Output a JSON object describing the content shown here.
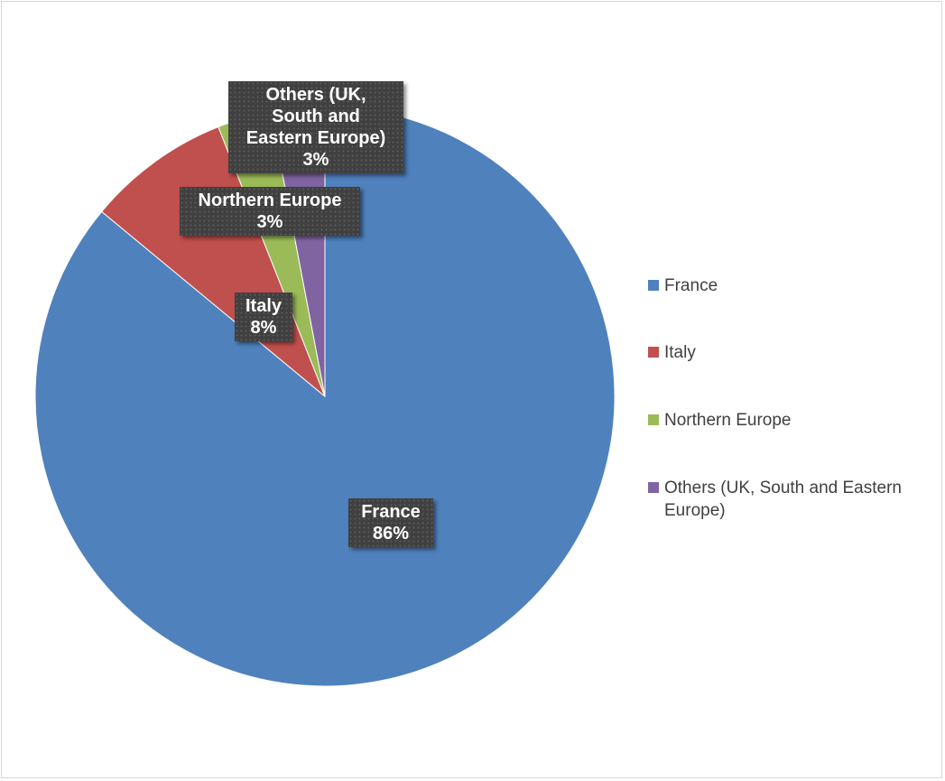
{
  "chart_data": {
    "type": "pie",
    "categories": [
      "France",
      "Italy",
      "Northern Europe",
      "Others (UK, South and Eastern Europe)"
    ],
    "values": [
      86,
      8,
      3,
      3
    ],
    "value_labels": [
      "86%",
      "8%",
      "3%",
      "3%"
    ],
    "colors": [
      "#4f81bd",
      "#c0504d",
      "#9bbb59",
      "#8064a2"
    ],
    "label_lines": [
      [
        "France",
        "86%"
      ],
      [
        "Italy",
        "8%"
      ],
      [
        "Northern Europe",
        "3%"
      ],
      [
        "Others (UK,",
        "South and",
        "Eastern Europe)",
        "3%"
      ]
    ],
    "legend": {
      "placement": "right",
      "entries": [
        "France",
        "Italy",
        "Northern Europe",
        "Others (UK, South and Eastern Europe)"
      ]
    }
  }
}
